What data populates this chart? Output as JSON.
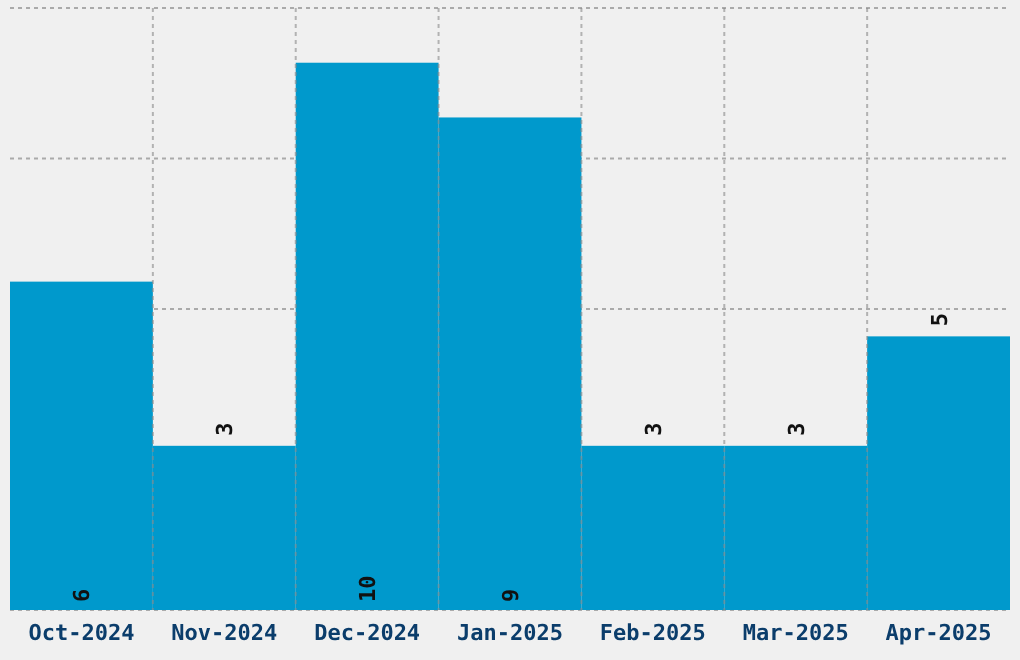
{
  "chart_data": {
    "type": "bar",
    "categories": [
      "Oct-2024",
      "Nov-2024",
      "Dec-2024",
      "Jan-2025",
      "Feb-2025",
      "Mar-2025",
      "Apr-2025"
    ],
    "values": [
      6,
      3,
      10,
      9,
      3,
      3,
      5
    ],
    "color": "#0099cc",
    "ylim": [
      0,
      11
    ],
    "yticks": [
      {
        "value": 0,
        "label": null
      },
      {
        "value": 2.75,
        "label": null
      },
      {
        "value": 5.5,
        "label": null
      },
      {
        "value": 8.25,
        "label": null
      },
      {
        "value": 11,
        "label": null
      }
    ],
    "grid": true,
    "data_labels": true,
    "tick_labels": "x"
  }
}
